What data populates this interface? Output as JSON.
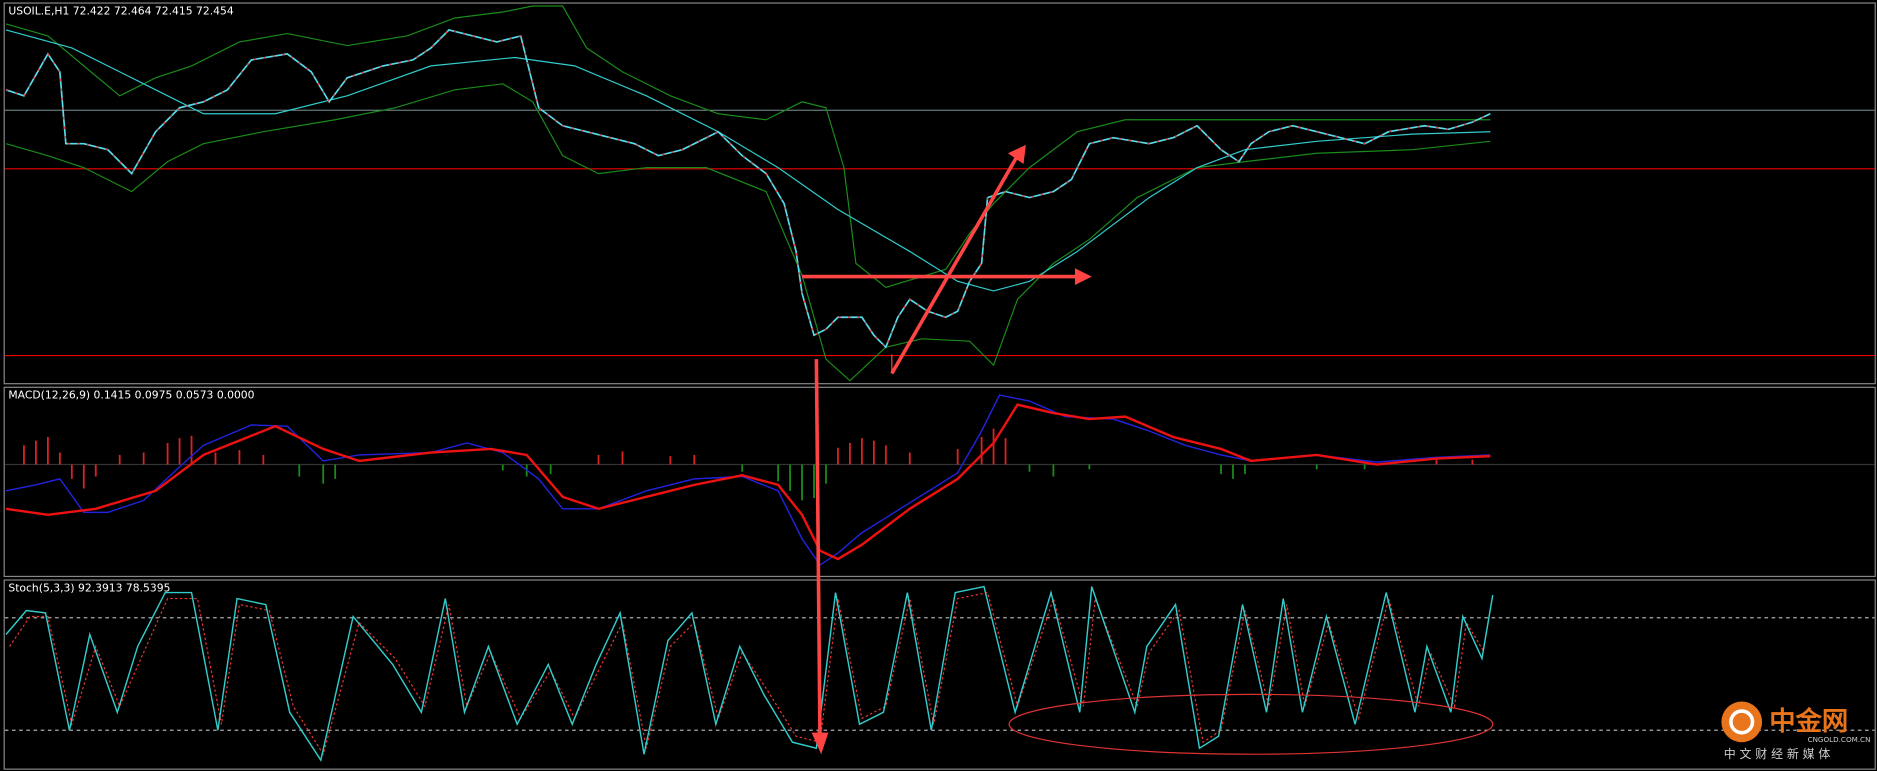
{
  "header": {
    "symbol_info": "USOIL.E,H1  72.422 72.464 72.415 72.454"
  },
  "macd": {
    "label": "MACD(12,26,9) 0.1415 0.0975 0.0573 0.0000"
  },
  "stoch": {
    "label": "Stoch(5,3,3) 92.3913 78.5395"
  },
  "watermark": {
    "name": "中金网",
    "site": "CNGOLD.COM.CN",
    "slogan": "中 文 财 经 新 媒 体"
  }
}
